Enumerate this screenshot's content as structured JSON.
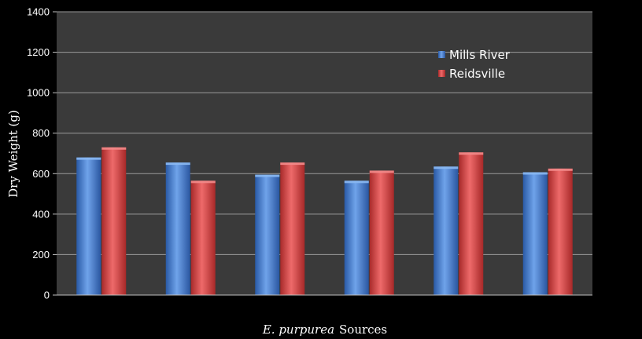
{
  "chart_data": {
    "type": "bar",
    "categories": [
      "",
      "",
      "",
      "",
      "",
      ""
    ],
    "series": [
      {
        "name": "Mills River",
        "values": [
          680,
          655,
          595,
          565,
          635,
          607
        ]
      },
      {
        "name": "Reidsville",
        "values": [
          730,
          565,
          655,
          615,
          705,
          625
        ]
      }
    ],
    "xlabel_italic": "E. purpurea",
    "xlabel_rest": "Sources",
    "ylabel": "Dry Weight (g)",
    "ylim": [
      0,
      1400
    ],
    "yticks": [
      0,
      200,
      400,
      600,
      800,
      1000,
      1200,
      1400
    ],
    "grid": true,
    "legend_placement": "top-right",
    "colors": {
      "plot_background": "#3a3a3a",
      "page_background": "#000000",
      "gridline": "#9a9a9a",
      "series": [
        "#3f78c8",
        "#d94646"
      ]
    }
  }
}
